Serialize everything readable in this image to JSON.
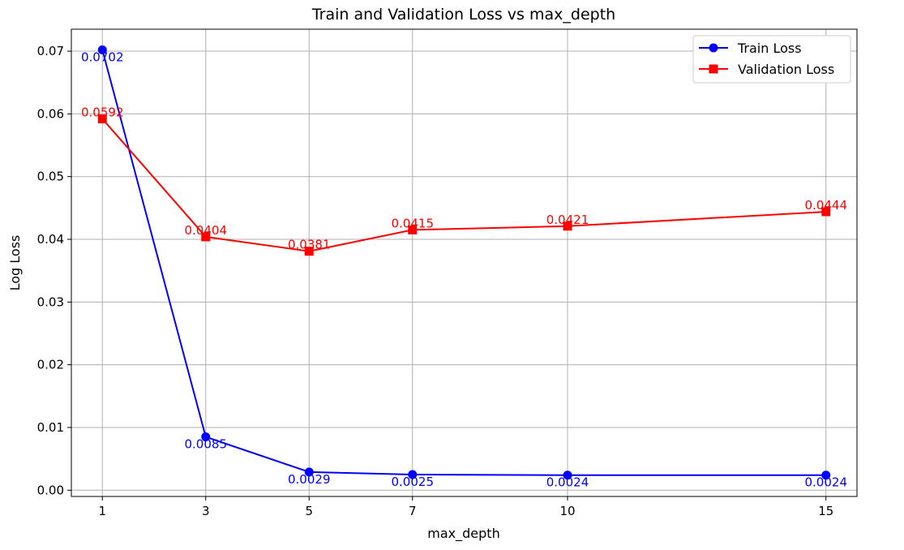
{
  "chart_data": {
    "type": "line",
    "title": "Train and Validation Loss vs max_depth",
    "xlabel": "max_depth",
    "ylabel": "Log Loss",
    "x": [
      1,
      3,
      5,
      7,
      10,
      15
    ],
    "xticks": [
      "1",
      "3",
      "5",
      "7",
      "10",
      "15"
    ],
    "yticks": [
      "0.00",
      "0.01",
      "0.02",
      "0.03",
      "0.04",
      "0.05",
      "0.06",
      "0.07"
    ],
    "ylim": [
      -0.001,
      0.0735
    ],
    "grid": true,
    "legend_position": "top-right",
    "series": [
      {
        "name": "Train Loss",
        "color": "#0000ff",
        "marker": "circle",
        "values": [
          0.0702,
          0.0085,
          0.0029,
          0.0025,
          0.0024,
          0.0024
        ],
        "labels": [
          "0.0702",
          "0.0085",
          "0.0029",
          "0.0025",
          "0.0024",
          "0.0024"
        ]
      },
      {
        "name": "Validation Loss",
        "color": "#ff0000",
        "marker": "square",
        "values": [
          0.0592,
          0.0404,
          0.0381,
          0.0415,
          0.0421,
          0.0444
        ],
        "labels": [
          "0.0592",
          "0.0404",
          "0.0381",
          "0.0415",
          "0.0421",
          "0.0444"
        ]
      }
    ]
  }
}
